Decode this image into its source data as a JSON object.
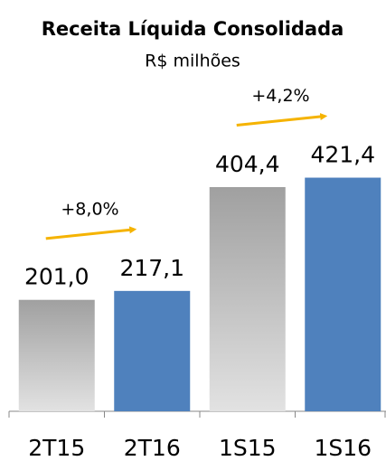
{
  "chart_data": {
    "type": "bar",
    "title": "Receita Líquida Consolidada",
    "subtitle": "R$ milhões",
    "categories": [
      "2T15",
      "2T16",
      "1S15",
      "1S16"
    ],
    "values": [
      201.0,
      217.1,
      404.4,
      421.4
    ],
    "value_labels": [
      "201,0",
      "217,1",
      "404,4",
      "421,4"
    ],
    "colors": [
      "#a0a0a0",
      "#4f81bd",
      "#a0a0a0",
      "#4f81bd"
    ],
    "gradient": [
      true,
      false,
      true,
      false
    ],
    "annotations": [
      {
        "text": "+8,0%"
      },
      {
        "text": "+4,2%"
      }
    ],
    "arrow_color": "#f5b300",
    "ylim": [
      0,
      450
    ]
  }
}
